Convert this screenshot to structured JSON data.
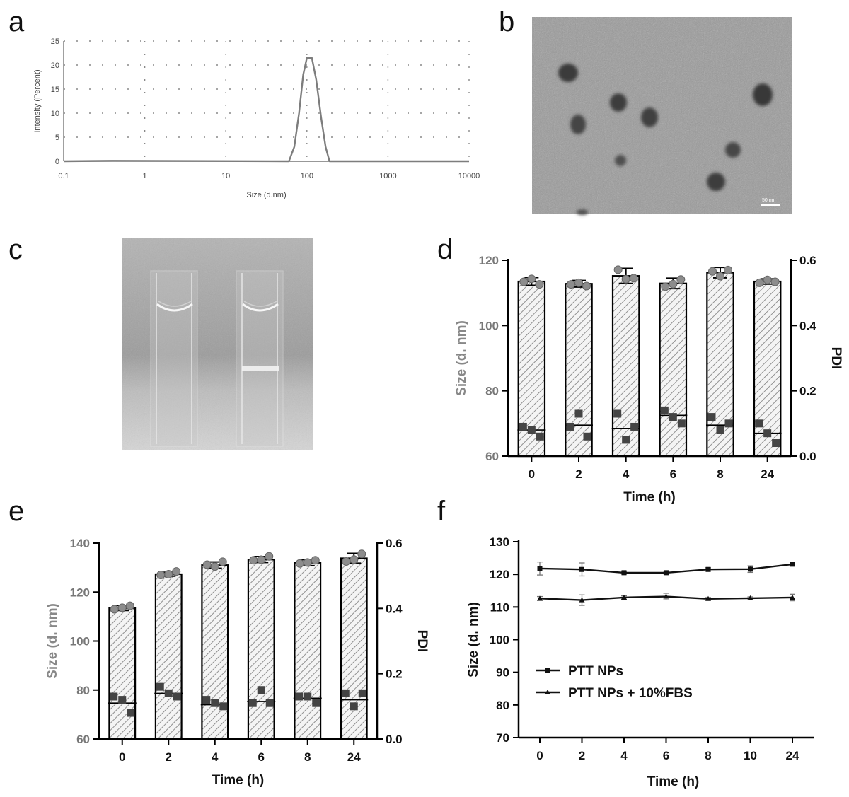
{
  "panels": {
    "a": "a",
    "b": "b",
    "c": "c",
    "d": "d",
    "e": "e",
    "f": "f"
  },
  "tem_scale_label": "50 nm",
  "colors": {
    "bar_hatch": "#7a7a7a",
    "size_point": "#8c8c8c",
    "pdi_point": "#444444",
    "line": "#111111",
    "distribution": "#7d7d7d"
  },
  "chart_data": [
    {
      "panel": "a",
      "type": "line",
      "title": "",
      "xlabel": "Size (d.nm)",
      "ylabel": "Intensity (Percent)",
      "xscale": "log",
      "xlim": [
        0.1,
        10000
      ],
      "ylim": [
        0,
        25
      ],
      "xticks": [
        0.1,
        1,
        10,
        100,
        1000,
        10000
      ],
      "xtick_labels": [
        "0.1",
        "1",
        "10",
        "100",
        "1000",
        "10000"
      ],
      "yticks": [
        0,
        5,
        10,
        15,
        20,
        25
      ],
      "ytick_labels": [
        "0",
        "5",
        "10",
        "15",
        "20",
        "25"
      ],
      "grid": true,
      "x": [
        0.1,
        0.4,
        60,
        70,
        80,
        90,
        100,
        115,
        130,
        150,
        170,
        190,
        10000
      ],
      "y": [
        0,
        0.1,
        0,
        3,
        10,
        18,
        21.5,
        21.5,
        17,
        9,
        3,
        0,
        0
      ]
    },
    {
      "panel": "d",
      "type": "bar",
      "categories": [
        "0",
        "2",
        "4",
        "6",
        "8",
        "24"
      ],
      "xlabel": "Time (h)",
      "ylabel": "Size (d. nm)",
      "ylabel_right": "PDI",
      "ylim": [
        60,
        120
      ],
      "yticks": [
        60,
        80,
        100,
        120
      ],
      "ytick_labels": [
        "60",
        "80",
        "100",
        "120"
      ],
      "ylim_right": [
        0,
        0.6
      ],
      "yticks_right": [
        0,
        0.2,
        0.4,
        0.6
      ],
      "ytick_labels_right": [
        "0.0",
        "0.2",
        "0.4",
        "0.6"
      ],
      "size_mean": [
        113.5,
        112.8,
        115.2,
        112.9,
        116.2,
        113.5
      ],
      "size_err": [
        1.2,
        1.0,
        2.3,
        1.6,
        1.6,
        0.8
      ],
      "size_points": [
        [
          113.4,
          114.3,
          112.6
        ],
        [
          112.6,
          113.1,
          112.1
        ],
        [
          117.1,
          114.2,
          114.5
        ],
        [
          111.9,
          112.7,
          114.1
        ],
        [
          116.6,
          115.1,
          117.0
        ],
        [
          113.1,
          114.0,
          113.4
        ]
      ],
      "pdi_mean": [
        0.08,
        0.095,
        0.085,
        0.125,
        0.095,
        0.07
      ],
      "pdi_points": [
        [
          0.09,
          0.08,
          0.06
        ],
        [
          0.09,
          0.13,
          0.06
        ],
        [
          0.13,
          0.05,
          0.09
        ],
        [
          0.14,
          0.12,
          0.1
        ],
        [
          0.12,
          0.08,
          0.1
        ],
        [
          0.1,
          0.07,
          0.04
        ]
      ]
    },
    {
      "panel": "e",
      "type": "bar",
      "categories": [
        "0",
        "2",
        "4",
        "6",
        "8",
        "24"
      ],
      "xlabel": "Time (h)",
      "ylabel": "Size (d. nm)",
      "ylabel_right": "PDI",
      "ylim": [
        60,
        140
      ],
      "yticks": [
        60,
        80,
        100,
        120,
        140
      ],
      "ytick_labels": [
        "60",
        "80",
        "100",
        "120",
        "140"
      ],
      "ylim_right": [
        0,
        0.6
      ],
      "yticks_right": [
        0,
        0.2,
        0.4,
        0.6
      ],
      "ytick_labels_right": [
        "0.0",
        "0.2",
        "0.4",
        "0.6"
      ],
      "size_mean": [
        113.5,
        127.3,
        131.0,
        133.3,
        132.0,
        133.8
      ],
      "size_err": [
        1.0,
        0.8,
        1.3,
        1.2,
        1.2,
        2.0
      ],
      "size_points": [
        [
          113.0,
          113.6,
          114.4
        ],
        [
          127.0,
          127.3,
          128.4
        ],
        [
          131.2,
          130.4,
          132.4
        ],
        [
          133.0,
          133.2,
          134.6
        ],
        [
          131.7,
          132.1,
          133.0
        ],
        [
          132.5,
          133.3,
          135.6
        ]
      ],
      "pdi_mean": [
        0.11,
        0.14,
        0.105,
        0.115,
        0.125,
        0.12
      ],
      "pdi_points": [
        [
          0.13,
          0.12,
          0.08
        ],
        [
          0.16,
          0.14,
          0.13
        ],
        [
          0.12,
          0.11,
          0.1
        ],
        [
          0.11,
          0.15,
          0.11
        ],
        [
          0.13,
          0.13,
          0.11
        ],
        [
          0.14,
          0.1,
          0.14
        ]
      ]
    },
    {
      "panel": "f",
      "type": "line",
      "categories": [
        "0",
        "2",
        "4",
        "6",
        "8",
        "10",
        "24"
      ],
      "xlabel": "Time (h)",
      "ylabel": "Size (d. nm)",
      "ylim": [
        70,
        130
      ],
      "yticks": [
        70,
        80,
        90,
        100,
        110,
        120,
        130
      ],
      "ytick_labels": [
        "70",
        "80",
        "90",
        "100",
        "110",
        "120",
        "130"
      ],
      "legend_position": "center-left",
      "series": [
        {
          "name": "PTT NPs",
          "marker": "square",
          "values": [
            121.8,
            121.5,
            120.5,
            120.5,
            121.5,
            121.6,
            123.1
          ],
          "err": [
            2.0,
            2.0,
            0.4,
            0.4,
            0.5,
            1.0,
            0.4
          ]
        },
        {
          "name": "PTT NPs + 10%FBS",
          "marker": "triangle",
          "values": [
            112.6,
            112.1,
            112.9,
            113.2,
            112.5,
            112.7,
            112.9
          ],
          "err": [
            0.6,
            1.6,
            0.5,
            1.0,
            0.4,
            0.4,
            1.0
          ]
        }
      ]
    }
  ]
}
